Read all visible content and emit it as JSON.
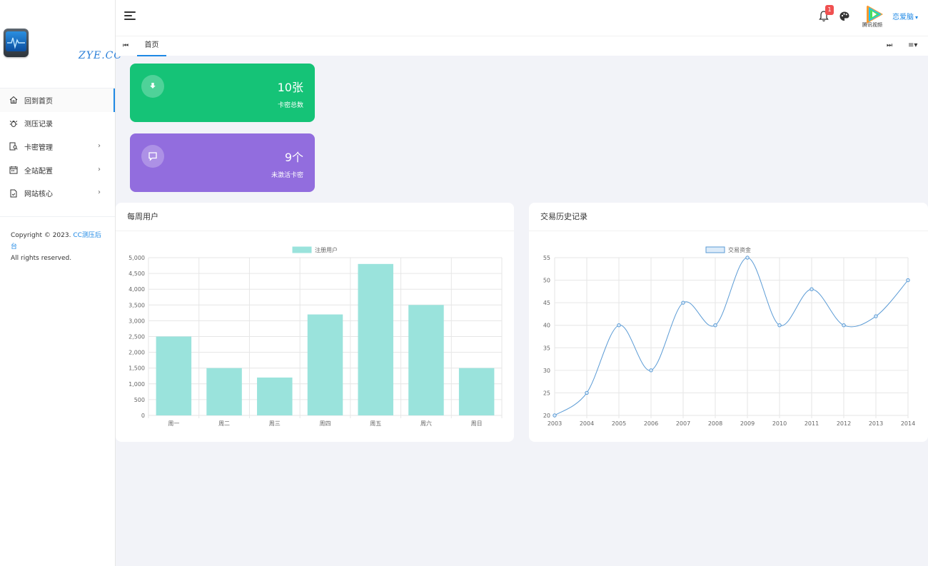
{
  "sidebar": {
    "logo_text": "ZYE.CC",
    "items": [
      {
        "label": "回到首页",
        "icon": "home-icon",
        "active": true,
        "has_arrow": false
      },
      {
        "label": "测压记录",
        "icon": "bug-icon",
        "active": false,
        "has_arrow": false
      },
      {
        "label": "卡密管理",
        "icon": "card-search-icon",
        "active": false,
        "has_arrow": true
      },
      {
        "label": "全站配置",
        "icon": "calendar-icon",
        "active": false,
        "has_arrow": true
      },
      {
        "label": "网站核心",
        "icon": "file-icon",
        "active": false,
        "has_arrow": true
      }
    ],
    "arrow": "›",
    "copyright_prefix": "Copyright © 2023. ",
    "copyright_link": "CC测压后台",
    "copyright_suffix": "All rights reserved."
  },
  "header": {
    "notification_count": "1",
    "avatar_caption": "腾讯视频",
    "username": "恋爱脑",
    "caret": "▾"
  },
  "tabs": {
    "prev": "⏮",
    "home": "首页",
    "next": "⏭",
    "menu": "≡▾"
  },
  "stats": [
    {
      "value": "10张",
      "label": "卡密总数",
      "icon": "download-icon",
      "color": "#15c377"
    },
    {
      "value": "9个",
      "label": "未激活卡密",
      "icon": "comment-icon",
      "color": "#926dde"
    }
  ],
  "charts": {
    "weekly_title": "每周用户",
    "history_title": "交易历史记录"
  },
  "chart_data": [
    {
      "type": "bar",
      "legend": "注册用户",
      "categories": [
        "周一",
        "周二",
        "周三",
        "周四",
        "周五",
        "周六",
        "周日"
      ],
      "values": [
        2500,
        1500,
        1200,
        3200,
        4800,
        3500,
        1500
      ],
      "ylim": [
        0,
        5000
      ],
      "yticks": [
        "0",
        "500",
        "1,000",
        "1,500",
        "2,000",
        "2,500",
        "3,000",
        "3,500",
        "4,000",
        "4,500",
        "5,000"
      ],
      "color": "#9ae3dc",
      "grid": true,
      "legend_position": "top"
    },
    {
      "type": "line",
      "legend": "交易资金",
      "x": [
        "2003",
        "2004",
        "2005",
        "2006",
        "2007",
        "2008",
        "2009",
        "2010",
        "2011",
        "2012",
        "2013",
        "2014"
      ],
      "values": [
        20,
        25,
        40,
        30,
        45,
        40,
        55,
        40,
        48,
        40,
        42,
        50
      ],
      "ylim": [
        20,
        55
      ],
      "yticks": [
        "20",
        "25",
        "30",
        "35",
        "40",
        "45",
        "50",
        "55"
      ],
      "color": "#5b9bd5",
      "grid": true,
      "legend_position": "top"
    }
  ]
}
